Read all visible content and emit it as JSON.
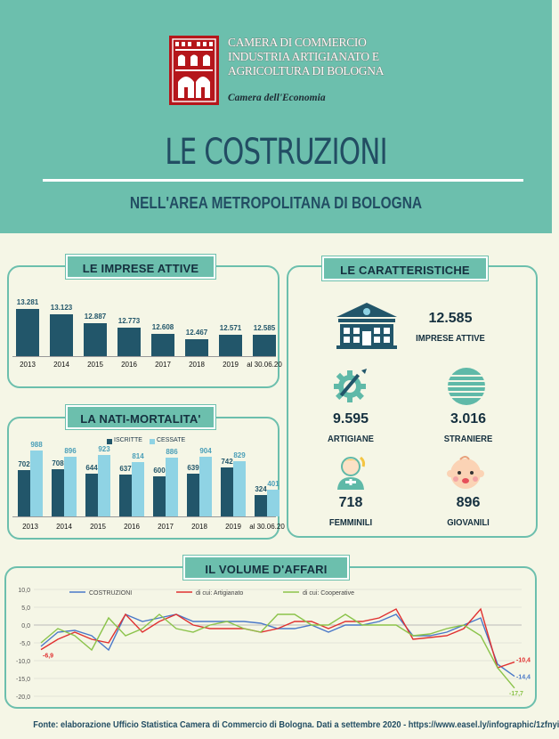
{
  "logo": {
    "lines": [
      "CAMERA DI COMMERCIO",
      "INDUSTRIA ARTIGIANATO E",
      "AGRICOLTURA DI BOLOGNA"
    ],
    "subline": "Camera dell'Economia"
  },
  "title": "LE COSTRUZIONI",
  "subtitle": "NELL'AREA METROPOLITANA DI BOLOGNA",
  "panels": {
    "imprese": "LE IMPRESE ATTIVE",
    "nati": "LA NATI-MORTALITA'",
    "caratteristiche": "LE CARATTERISTICHE",
    "volume": "IL VOLUME D'AFFARI"
  },
  "caratteristiche": {
    "imprese": {
      "value": "12.585",
      "label": "IMPRESE ATTIVE"
    },
    "artigiane": {
      "value": "9.595",
      "label": "ARTIGIANE"
    },
    "straniere": {
      "value": "3.016",
      "label": "STRANIERE"
    },
    "femminili": {
      "value": "718",
      "label": "FEMMINILI"
    },
    "giovanili": {
      "value": "896",
      "label": "GIOVANILI"
    }
  },
  "chart_data": [
    {
      "type": "bar",
      "categories": [
        "2013",
        "2014",
        "2015",
        "2016",
        "2017",
        "2018",
        "2019",
        "al 30.06.20"
      ],
      "values": [
        13281,
        13123,
        12887,
        12773,
        12608,
        12467,
        12571,
        12585
      ],
      "value_labels": [
        "13.281",
        "13.123",
        "12.887",
        "12.773",
        "12.608",
        "12.467",
        "12.571",
        "12.585"
      ],
      "title": "LE IMPRESE ATTIVE",
      "ylim": [
        12000,
        13400
      ]
    },
    {
      "type": "bar",
      "categories": [
        "2013",
        "2014",
        "2015",
        "2016",
        "2017",
        "2018",
        "2019",
        "al 30.06.20"
      ],
      "series": [
        {
          "name": "ISCRITTE",
          "values": [
            702,
            708,
            644,
            637,
            600,
            639,
            742,
            324
          ],
          "color": "#22566a"
        },
        {
          "name": "CESSATE",
          "values": [
            988,
            896,
            923,
            814,
            886,
            904,
            829,
            401
          ],
          "color": "#8fd3e4"
        }
      ],
      "title": "LA NATI-MORTALITA'",
      "ylim": [
        0,
        1100
      ]
    },
    {
      "type": "line",
      "title": "IL VOLUME D'AFFARI",
      "ylim": [
        -20,
        10
      ],
      "yticks": [
        "10,0",
        "5,0",
        "0,0",
        "-5,0",
        "-10,0",
        "-15,0",
        "-20,0"
      ],
      "series": [
        {
          "name": "COSTRUZIONI",
          "color": "#4a78c8",
          "values": [
            -6,
            -2,
            -1.5,
            -3,
            -7,
            3,
            1,
            2,
            3,
            1,
            1,
            1,
            1,
            0.5,
            -1,
            -1,
            0,
            -2,
            0,
            0,
            1,
            3,
            -3,
            -3,
            -2,
            0,
            2,
            -11,
            -14.4
          ]
        },
        {
          "name": "di cui: Artigianato",
          "color": "#e03030",
          "values": [
            -6.9,
            -4,
            -2,
            -4,
            -5,
            3,
            -2,
            1,
            3,
            0,
            -1,
            -1,
            -1,
            -2,
            -1,
            1,
            1,
            -1,
            1,
            1,
            2,
            4.5,
            -4,
            -3.5,
            -3,
            -1,
            4.5,
            -12,
            -10.4
          ]
        },
        {
          "name": "di cui: Cooperative",
          "color": "#8bc34a",
          "values": [
            -5,
            -1,
            -3,
            -7,
            2,
            -3,
            -1,
            3,
            -1,
            -2,
            0,
            1,
            -1,
            -2,
            3,
            3,
            0,
            0,
            3,
            0,
            0,
            0,
            -3,
            -2.5,
            -1,
            0,
            -3,
            -12,
            -17.7
          ]
        }
      ],
      "end_labels": {
        "start": "-6,9",
        "a": "-10,4",
        "b": "-14,4",
        "c": "-17,7"
      }
    }
  ],
  "footer": "Fonte: elaborazione Ufficio Statistica Camera di Commercio di Bologna. Dati a settembre 2020 - https://www.easel.ly/infographic/1zfnyi"
}
